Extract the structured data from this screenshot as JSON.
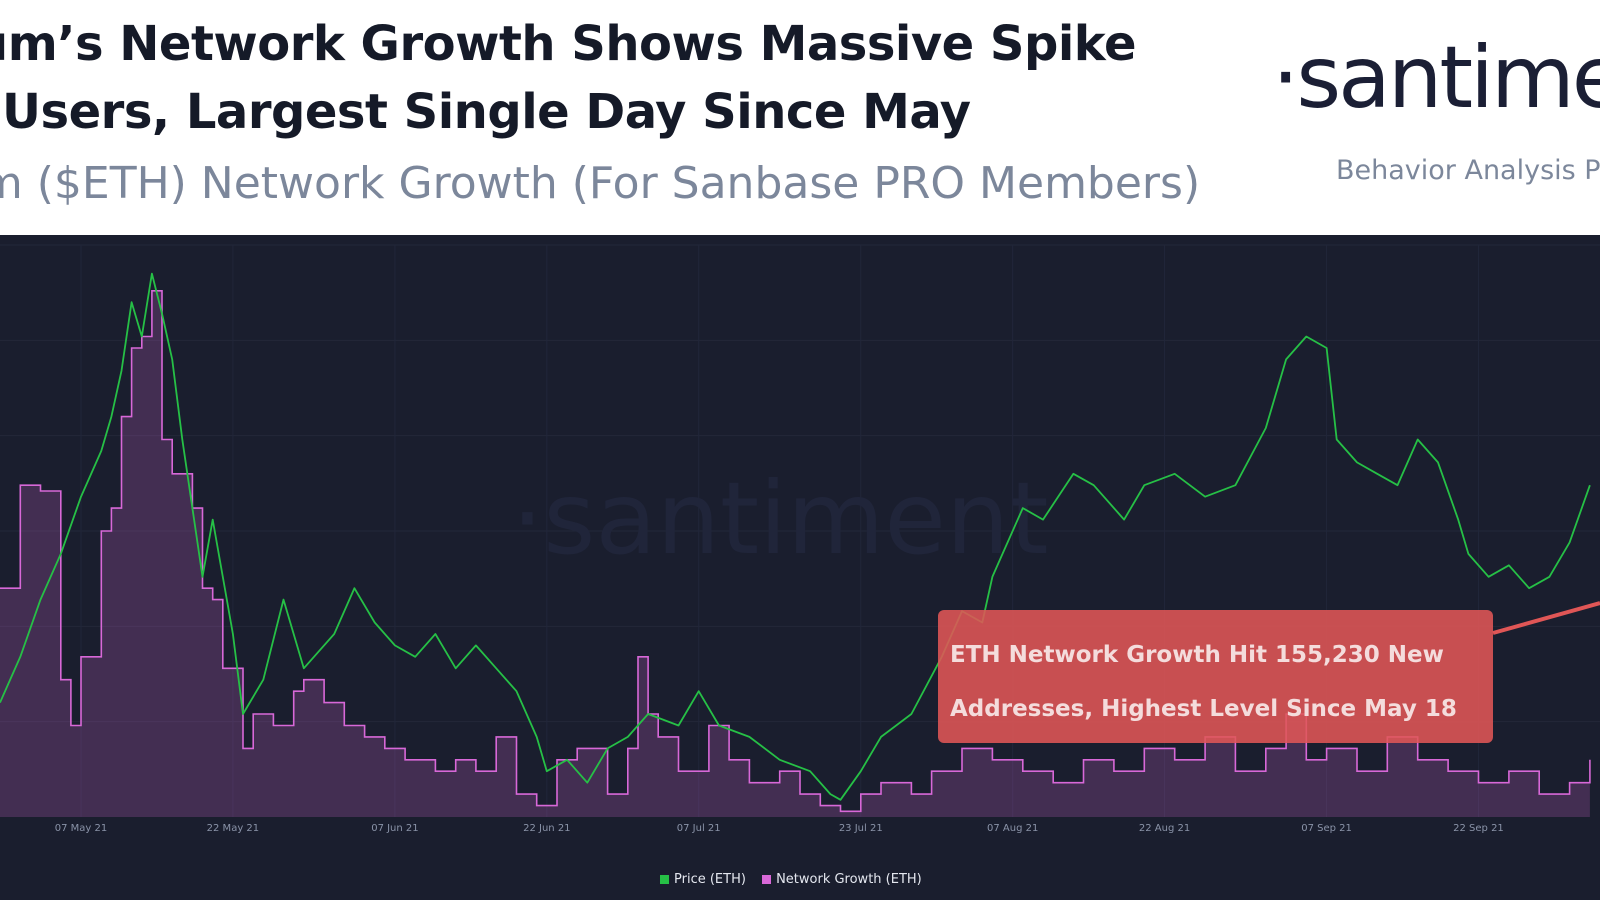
{
  "header": {
    "title_line1": "eum’s Network Growth Shows Massive Spike",
    "title_line2": "w Users, Largest Single Day Since May",
    "subtitle": "um ($ETH) Network Growth (For Sanbase PRO Members)",
    "logo_text": "·santime",
    "tagline": "Behavior Analysis Pl"
  },
  "watermark": "·santiment",
  "callout": {
    "line1": "ETH Network Growth Hit 155,230 New",
    "line2": "Addresses, Highest Level Since May 18"
  },
  "colors": {
    "background": "#1a1e2e",
    "price": "#26c046",
    "network_growth": "#d868d8",
    "callout": "#e05656"
  },
  "chart_data": {
    "type": "line",
    "x_axis": {
      "type": "date",
      "ticks": [
        "07 May 21",
        "22 May 21",
        "07 Jun 21",
        "22 Jun 21",
        "07 Jul 21",
        "23 Jul 21",
        "07 Aug 21",
        "22 Aug 21",
        "07 Sep 21",
        "22 Sep 21"
      ],
      "range": [
        "2021-04-29",
        "2021-10-04"
      ]
    },
    "y_axis": {
      "labels_visible": false
    },
    "grid": true,
    "legend_placement": "bottom",
    "series": [
      {
        "name": "Price (ETH)",
        "color": "#26c046",
        "points": [
          [
            "2021-04-29",
            0.2
          ],
          [
            "2021-05-01",
            0.28
          ],
          [
            "2021-05-03",
            0.38
          ],
          [
            "2021-05-05",
            0.46
          ],
          [
            "2021-05-07",
            0.56
          ],
          [
            "2021-05-09",
            0.64
          ],
          [
            "2021-05-10",
            0.7
          ],
          [
            "2021-05-11",
            0.78
          ],
          [
            "2021-05-12",
            0.9
          ],
          [
            "2021-05-13",
            0.84
          ],
          [
            "2021-05-14",
            0.95
          ],
          [
            "2021-05-15",
            0.88
          ],
          [
            "2021-05-16",
            0.8
          ],
          [
            "2021-05-17",
            0.66
          ],
          [
            "2021-05-19",
            0.42
          ],
          [
            "2021-05-20",
            0.52
          ],
          [
            "2021-05-22",
            0.32
          ],
          [
            "2021-05-23",
            0.18
          ],
          [
            "2021-05-25",
            0.24
          ],
          [
            "2021-05-27",
            0.38
          ],
          [
            "2021-05-29",
            0.26
          ],
          [
            "2021-06-01",
            0.32
          ],
          [
            "2021-06-03",
            0.4
          ],
          [
            "2021-06-05",
            0.34
          ],
          [
            "2021-06-07",
            0.3
          ],
          [
            "2021-06-09",
            0.28
          ],
          [
            "2021-06-11",
            0.32
          ],
          [
            "2021-06-13",
            0.26
          ],
          [
            "2021-06-15",
            0.3
          ],
          [
            "2021-06-17",
            0.26
          ],
          [
            "2021-06-19",
            0.22
          ],
          [
            "2021-06-21",
            0.14
          ],
          [
            "2021-06-22",
            0.08
          ],
          [
            "2021-06-24",
            0.1
          ],
          [
            "2021-06-26",
            0.06
          ],
          [
            "2021-06-28",
            0.12
          ],
          [
            "2021-06-30",
            0.14
          ],
          [
            "2021-07-02",
            0.18
          ],
          [
            "2021-07-05",
            0.16
          ],
          [
            "2021-07-07",
            0.22
          ],
          [
            "2021-07-09",
            0.16
          ],
          [
            "2021-07-12",
            0.14
          ],
          [
            "2021-07-15",
            0.1
          ],
          [
            "2021-07-18",
            0.08
          ],
          [
            "2021-07-20",
            0.04
          ],
          [
            "2021-07-21",
            0.03
          ],
          [
            "2021-07-23",
            0.08
          ],
          [
            "2021-07-25",
            0.14
          ],
          [
            "2021-07-28",
            0.18
          ],
          [
            "2021-07-31",
            0.28
          ],
          [
            "2021-08-02",
            0.36
          ],
          [
            "2021-08-04",
            0.34
          ],
          [
            "2021-08-05",
            0.42
          ],
          [
            "2021-08-06",
            0.46
          ],
          [
            "2021-08-08",
            0.54
          ],
          [
            "2021-08-10",
            0.52
          ],
          [
            "2021-08-13",
            0.6
          ],
          [
            "2021-08-15",
            0.58
          ],
          [
            "2021-08-18",
            0.52
          ],
          [
            "2021-08-20",
            0.58
          ],
          [
            "2021-08-23",
            0.6
          ],
          [
            "2021-08-26",
            0.56
          ],
          [
            "2021-08-29",
            0.58
          ],
          [
            "2021-09-01",
            0.68
          ],
          [
            "2021-09-03",
            0.8
          ],
          [
            "2021-09-05",
            0.84
          ],
          [
            "2021-09-07",
            0.82
          ],
          [
            "2021-09-08",
            0.66
          ],
          [
            "2021-09-10",
            0.62
          ],
          [
            "2021-09-12",
            0.6
          ],
          [
            "2021-09-14",
            0.58
          ],
          [
            "2021-09-16",
            0.66
          ],
          [
            "2021-09-18",
            0.62
          ],
          [
            "2021-09-20",
            0.52
          ],
          [
            "2021-09-21",
            0.46
          ],
          [
            "2021-09-23",
            0.42
          ],
          [
            "2021-09-25",
            0.44
          ],
          [
            "2021-09-27",
            0.4
          ],
          [
            "2021-09-29",
            0.42
          ],
          [
            "2021-10-01",
            0.48
          ],
          [
            "2021-10-03",
            0.58
          ]
        ]
      },
      {
        "name": "Network Growth (ETH)",
        "color": "#d868d8",
        "points": [
          [
            "2021-04-29",
            0.4
          ],
          [
            "2021-05-01",
            0.58
          ],
          [
            "2021-05-03",
            0.57
          ],
          [
            "2021-05-05",
            0.24
          ],
          [
            "2021-05-06",
            0.16
          ],
          [
            "2021-05-07",
            0.28
          ],
          [
            "2021-05-09",
            0.5
          ],
          [
            "2021-05-10",
            0.54
          ],
          [
            "2021-05-11",
            0.7
          ],
          [
            "2021-05-12",
            0.82
          ],
          [
            "2021-05-13",
            0.84
          ],
          [
            "2021-05-14",
            0.92
          ],
          [
            "2021-05-15",
            0.66
          ],
          [
            "2021-05-16",
            0.6
          ],
          [
            "2021-05-18",
            0.54
          ],
          [
            "2021-05-19",
            0.4
          ],
          [
            "2021-05-20",
            0.38
          ],
          [
            "2021-05-21",
            0.26
          ],
          [
            "2021-05-23",
            0.12
          ],
          [
            "2021-05-24",
            0.18
          ],
          [
            "2021-05-26",
            0.16
          ],
          [
            "2021-05-28",
            0.22
          ],
          [
            "2021-05-29",
            0.24
          ],
          [
            "2021-05-31",
            0.2
          ],
          [
            "2021-06-02",
            0.16
          ],
          [
            "2021-06-04",
            0.14
          ],
          [
            "2021-06-06",
            0.12
          ],
          [
            "2021-06-08",
            0.1
          ],
          [
            "2021-06-11",
            0.08
          ],
          [
            "2021-06-13",
            0.1
          ],
          [
            "2021-06-15",
            0.08
          ],
          [
            "2021-06-17",
            0.14
          ],
          [
            "2021-06-19",
            0.04
          ],
          [
            "2021-06-21",
            0.02
          ],
          [
            "2021-06-23",
            0.1
          ],
          [
            "2021-06-25",
            0.12
          ],
          [
            "2021-06-28",
            0.04
          ],
          [
            "2021-06-30",
            0.12
          ],
          [
            "2021-07-01",
            0.28
          ],
          [
            "2021-07-02",
            0.18
          ],
          [
            "2021-07-03",
            0.14
          ],
          [
            "2021-07-05",
            0.08
          ],
          [
            "2021-07-08",
            0.16
          ],
          [
            "2021-07-10",
            0.1
          ],
          [
            "2021-07-12",
            0.06
          ],
          [
            "2021-07-15",
            0.08
          ],
          [
            "2021-07-17",
            0.04
          ],
          [
            "2021-07-19",
            0.02
          ],
          [
            "2021-07-21",
            0.01
          ],
          [
            "2021-07-23",
            0.04
          ],
          [
            "2021-07-25",
            0.06
          ],
          [
            "2021-07-28",
            0.04
          ],
          [
            "2021-07-30",
            0.08
          ],
          [
            "2021-08-02",
            0.12
          ],
          [
            "2021-08-05",
            0.1
          ],
          [
            "2021-08-08",
            0.08
          ],
          [
            "2021-08-11",
            0.06
          ],
          [
            "2021-08-14",
            0.1
          ],
          [
            "2021-08-17",
            0.08
          ],
          [
            "2021-08-20",
            0.12
          ],
          [
            "2021-08-23",
            0.1
          ],
          [
            "2021-08-26",
            0.14
          ],
          [
            "2021-08-29",
            0.08
          ],
          [
            "2021-09-01",
            0.12
          ],
          [
            "2021-09-03",
            0.18
          ],
          [
            "2021-09-05",
            0.1
          ],
          [
            "2021-09-07",
            0.12
          ],
          [
            "2021-09-10",
            0.08
          ],
          [
            "2021-09-13",
            0.14
          ],
          [
            "2021-09-16",
            0.1
          ],
          [
            "2021-09-19",
            0.08
          ],
          [
            "2021-09-22",
            0.06
          ],
          [
            "2021-09-25",
            0.08
          ],
          [
            "2021-09-28",
            0.04
          ],
          [
            "2021-10-01",
            0.06
          ],
          [
            "2021-10-03",
            0.1
          ]
        ]
      }
    ]
  },
  "legend": {
    "items": [
      {
        "label": "Price (ETH)",
        "color": "#26c046"
      },
      {
        "label": "Network Growth (ETH)",
        "color": "#d868d8"
      }
    ]
  }
}
